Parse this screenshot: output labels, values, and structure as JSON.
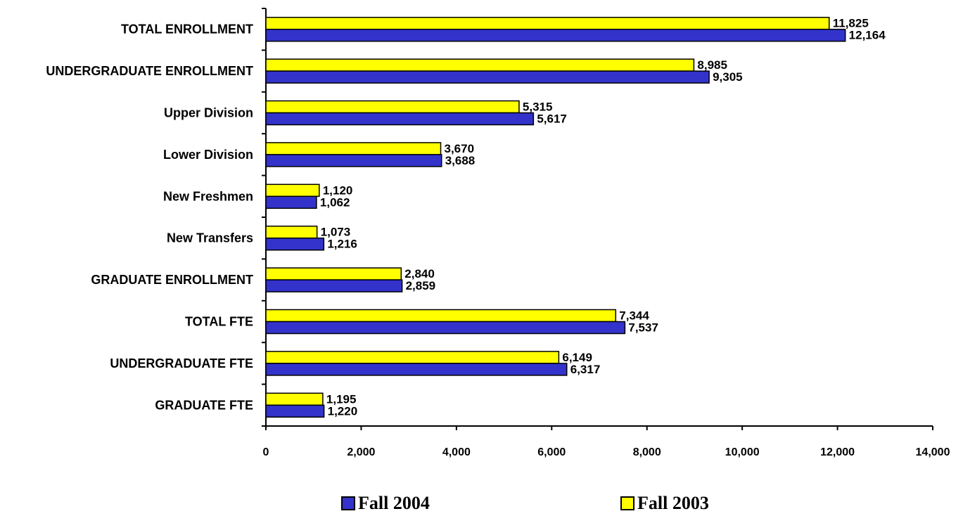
{
  "chart_data": {
    "type": "bar",
    "orientation": "horizontal",
    "categories": [
      "TOTAL ENROLLMENT",
      "UNDERGRADUATE ENROLLMENT",
      "Upper Division",
      "Lower Division",
      "New Freshmen",
      "New Transfers",
      "GRADUATE ENROLLMENT",
      "TOTAL FTE",
      "UNDERGRADUATE FTE",
      "GRADUATE FTE"
    ],
    "series": [
      {
        "name": "Fall 2003",
        "color": "#ffff00",
        "values": [
          11825,
          8985,
          5315,
          3670,
          1120,
          1073,
          2840,
          7344,
          6149,
          1195
        ],
        "labels": [
          "11,825",
          "8,985",
          "5,315",
          "3,670",
          "1,120",
          "1,073",
          "2,840",
          "7,344",
          "6,149",
          "1,195"
        ]
      },
      {
        "name": "Fall 2004",
        "color": "#3333cc",
        "values": [
          12164,
          9305,
          5617,
          3688,
          1062,
          1216,
          2859,
          7537,
          6317,
          1220
        ],
        "labels": [
          "12,164",
          "9,305",
          "5,617",
          "3,688",
          "1,062",
          "1,216",
          "2,859",
          "7,537",
          "6,317",
          "1,220"
        ]
      }
    ],
    "xlim": [
      0,
      14000
    ],
    "x_ticks": [
      0,
      2000,
      4000,
      6000,
      8000,
      10000,
      12000,
      14000
    ],
    "x_tick_labels": [
      "0",
      "2,000",
      "4,000",
      "6,000",
      "8,000",
      "10,000",
      "12,000",
      "14,000"
    ],
    "grid": false,
    "legend": {
      "placement": "bottom",
      "entries": [
        {
          "name": "Fall 2004",
          "color": "#3333cc"
        },
        {
          "name": "Fall 2003",
          "color": "#ffff00"
        }
      ]
    }
  }
}
